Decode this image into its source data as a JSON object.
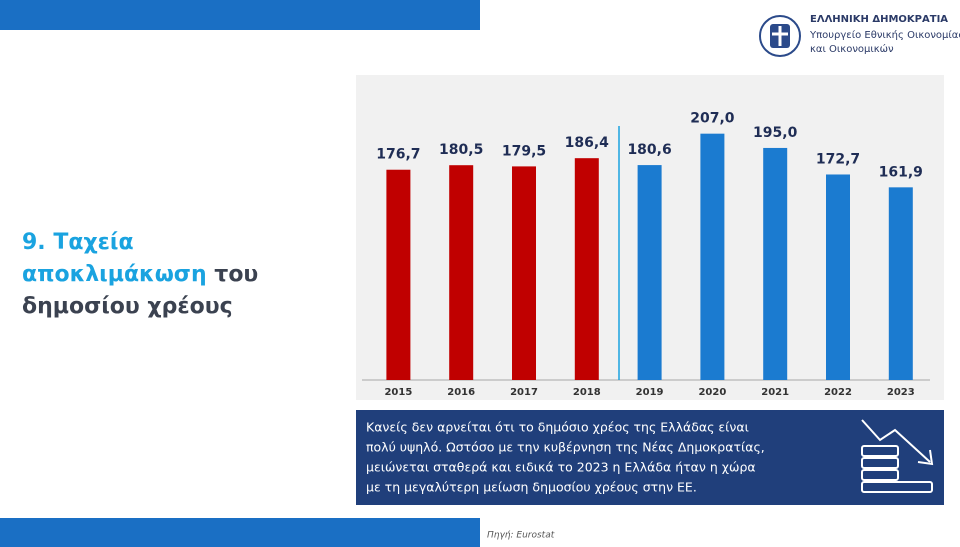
{
  "header": {
    "org": "ΕΛΛΗΝΙΚΗ ΔΗΜΟΚΡΑΤΙΑ",
    "ministry": [
      "Υπουργείο Εθνικής Οικονομίας",
      "και Οικονομικών"
    ]
  },
  "heading": [
    {
      "text": "9. Ταχεία",
      "color": "#1aa3e0"
    },
    {
      "text": "αποκλιμάκωση",
      "color": "#1aa3e0"
    },
    {
      "text": "του",
      "color": "#3b4250"
    },
    {
      "text": "δημοσίου χρέους",
      "color": "#3b4250"
    }
  ],
  "chart_data": {
    "type": "bar",
    "categories": [
      "2015",
      "2016",
      "2017",
      "2018",
      "2019",
      "2020",
      "2021",
      "2022",
      "2023"
    ],
    "values": [
      176.7,
      180.5,
      179.5,
      186.4,
      180.6,
      207.0,
      195.0,
      172.7,
      161.9
    ],
    "value_labels": [
      "176,7",
      "180,5",
      "179,5",
      "186,4",
      "180,6",
      "207,0",
      "195,0",
      "172,7",
      "161,9"
    ],
    "colors": [
      "#c00000",
      "#c00000",
      "#c00000",
      "#c00000",
      "#1b7bd0",
      "#1b7bd0",
      "#1b7bd0",
      "#1b7bd0",
      "#1b7bd0"
    ]
  },
  "note": [
    "Κανείς δεν αρνείται ότι το δημόσιο χρέος της Ελλάδας είναι",
    "πολύ υψηλό. Ωστόσο με την κυβέρνηση της Νέας Δημοκρατίας,",
    "μειώνεται σταθερά και ειδικά το 2023 η Ελλάδα ήταν η χώρα",
    "με τη μεγαλύτερη μείωση δημοσίου χρέους στην ΕΕ."
  ],
  "source": "Πηγή: Eurostat"
}
